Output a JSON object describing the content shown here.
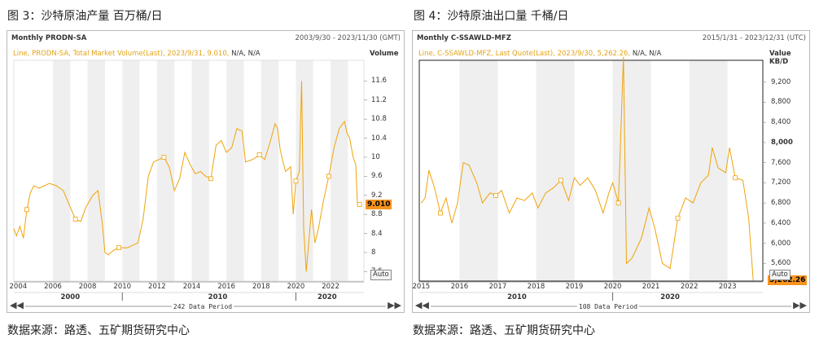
{
  "colors": {
    "line": "#f0a30a",
    "accent": "#f7941d",
    "band": "#efefef"
  },
  "charts": [
    {
      "figure_title": "图 3：沙特原油产量  百万桶/日",
      "source": "数据来源：路透、五矿期货研究中心",
      "series_code": "Monthly PRODN-SA",
      "date_range": "2003/9/30 - 2023/11/30 (GMT)",
      "legend": "Line, PRODN-SA, Total Market Volume(Last), 2023/9/31, 9.010,",
      "legend_na": "N/A, N/A",
      "unit_label": "Volume",
      "last_value_label": "9.010",
      "auto_label": "Auto",
      "period_label": "242 Data Period",
      "decade_labels": [
        "2000",
        "2010",
        "2020"
      ],
      "x_tick_labels": [
        "2004",
        "2006",
        "2008",
        "2010",
        "2012",
        "2014",
        "2016",
        "2018",
        "2020",
        "2022"
      ],
      "y_tick_labels": [
        "7.6",
        "8",
        "8.4",
        "8.8",
        "9.2",
        "9.6",
        "10",
        "10.4",
        "10.8",
        "11.2",
        "11.6"
      ]
    },
    {
      "figure_title": "图 4：沙特原油出口量  千桶/日",
      "source": "数据来源：路透、五矿期货研究中心",
      "series_code": "Monthly C-SSAWLD-MFZ",
      "date_range": "2015/1/31 - 2023/12/31 (UTC)",
      "legend": "Line, C-SSAWLD-MFZ, Last Quote(Last), 2023/9/30, 5,262.26,",
      "legend_na": "N/A, N/A",
      "unit_label": "Value",
      "unit_label2": "KB/D",
      "last_value_label": "5,262.26",
      "auto_label": "Auto",
      "period_label": "108 Data Period",
      "decade_labels": [
        "2010",
        "2020"
      ],
      "x_tick_labels": [
        "2015",
        "2016",
        "2017",
        "2018",
        "2019",
        "2020",
        "2021",
        "2022",
        "2023"
      ],
      "y_tick_labels": [
        "5,600",
        "6,000",
        "6,400",
        "6,800",
        "7,200",
        "7,600",
        "8,000",
        "8,400",
        "8,800",
        "9,200"
      ]
    }
  ],
  "chart_data": [
    {
      "type": "line",
      "title": "Monthly PRODN-SA",
      "ylabel": "Volume",
      "xlim": [
        2003.75,
        2023.92
      ],
      "ylim": [
        7.4,
        12.0
      ],
      "grid": false,
      "points": [
        [
          2003.75,
          8.5
        ],
        [
          2003.9,
          8.35
        ],
        [
          2004.1,
          8.55
        ],
        [
          2004.3,
          8.3
        ],
        [
          2004.5,
          8.9
        ],
        [
          2004.7,
          9.25
        ],
        [
          2004.9,
          9.4
        ],
        [
          2005.2,
          9.35
        ],
        [
          2005.5,
          9.4
        ],
        [
          2005.8,
          9.45
        ],
        [
          2006.2,
          9.4
        ],
        [
          2006.6,
          9.3
        ],
        [
          2007.0,
          8.95
        ],
        [
          2007.3,
          8.7
        ],
        [
          2007.6,
          8.65
        ],
        [
          2007.9,
          8.95
        ],
        [
          2008.3,
          9.2
        ],
        [
          2008.6,
          9.3
        ],
        [
          2008.85,
          8.6
        ],
        [
          2009.0,
          8.0
        ],
        [
          2009.2,
          7.95
        ],
        [
          2009.5,
          8.05
        ],
        [
          2009.8,
          8.1
        ],
        [
          2010.0,
          8.1
        ],
        [
          2010.3,
          8.1
        ],
        [
          2010.6,
          8.15
        ],
        [
          2010.9,
          8.2
        ],
        [
          2011.2,
          8.7
        ],
        [
          2011.5,
          9.6
        ],
        [
          2011.8,
          9.9
        ],
        [
          2012.1,
          9.95
        ],
        [
          2012.4,
          10.0
        ],
        [
          2012.7,
          9.8
        ],
        [
          2013.0,
          9.3
        ],
        [
          2013.3,
          9.55
        ],
        [
          2013.6,
          10.1
        ],
        [
          2013.9,
          9.85
        ],
        [
          2014.2,
          9.65
        ],
        [
          2014.5,
          9.7
        ],
        [
          2014.8,
          9.6
        ],
        [
          2015.1,
          9.55
        ],
        [
          2015.4,
          10.25
        ],
        [
          2015.7,
          10.35
        ],
        [
          2016.0,
          10.1
        ],
        [
          2016.3,
          10.2
        ],
        [
          2016.6,
          10.6
        ],
        [
          2016.9,
          10.55
        ],
        [
          2017.1,
          9.9
        ],
        [
          2017.5,
          9.95
        ],
        [
          2017.9,
          10.05
        ],
        [
          2018.2,
          9.95
        ],
        [
          2018.5,
          10.3
        ],
        [
          2018.8,
          10.7
        ],
        [
          2018.95,
          10.6
        ],
        [
          2019.1,
          10.15
        ],
        [
          2019.4,
          9.7
        ],
        [
          2019.7,
          9.8
        ],
        [
          2019.85,
          8.8
        ],
        [
          2020.0,
          9.5
        ],
        [
          2020.2,
          9.7
        ],
        [
          2020.33,
          11.6
        ],
        [
          2020.45,
          8.5
        ],
        [
          2020.6,
          7.6
        ],
        [
          2020.9,
          8.9
        ],
        [
          2021.1,
          8.2
        ],
        [
          2021.3,
          8.5
        ],
        [
          2021.6,
          9.1
        ],
        [
          2021.9,
          9.6
        ],
        [
          2022.2,
          10.2
        ],
        [
          2022.5,
          10.6
        ],
        [
          2022.8,
          10.75
        ],
        [
          2022.95,
          10.5
        ],
        [
          2023.1,
          10.4
        ],
        [
          2023.3,
          10.0
        ],
        [
          2023.45,
          9.85
        ],
        [
          2023.55,
          9.0
        ],
        [
          2023.67,
          9.01
        ]
      ],
      "last_value": 9.01,
      "last_date": "2023/9/31"
    },
    {
      "type": "line",
      "title": "Monthly C-SSAWLD-MFZ",
      "ylabel": "KB/D",
      "xlim": [
        2014.95,
        2023.92
      ],
      "ylim": [
        5250,
        9600
      ],
      "grid": false,
      "points": [
        [
          2015.0,
          6800
        ],
        [
          2015.1,
          6900
        ],
        [
          2015.2,
          7450
        ],
        [
          2015.35,
          7100
        ],
        [
          2015.5,
          6600
        ],
        [
          2015.65,
          6900
        ],
        [
          2015.8,
          6400
        ],
        [
          2015.95,
          6800
        ],
        [
          2016.1,
          7600
        ],
        [
          2016.25,
          7550
        ],
        [
          2016.45,
          7200
        ],
        [
          2016.6,
          6800
        ],
        [
          2016.8,
          7000
        ],
        [
          2016.95,
          6950
        ],
        [
          2017.1,
          7050
        ],
        [
          2017.3,
          6600
        ],
        [
          2017.5,
          6900
        ],
        [
          2017.7,
          6850
        ],
        [
          2017.9,
          7000
        ],
        [
          2018.05,
          6700
        ],
        [
          2018.25,
          7000
        ],
        [
          2018.45,
          7100
        ],
        [
          2018.65,
          7250
        ],
        [
          2018.85,
          6850
        ],
        [
          2019.0,
          7300
        ],
        [
          2019.15,
          7150
        ],
        [
          2019.35,
          7300
        ],
        [
          2019.55,
          7050
        ],
        [
          2019.75,
          6600
        ],
        [
          2019.9,
          7000
        ],
        [
          2020.0,
          7200
        ],
        [
          2020.15,
          6800
        ],
        [
          2020.28,
          9700
        ],
        [
          2020.36,
          5600
        ],
        [
          2020.5,
          5700
        ],
        [
          2020.75,
          6100
        ],
        [
          2020.95,
          6700
        ],
        [
          2021.1,
          6300
        ],
        [
          2021.3,
          5600
        ],
        [
          2021.5,
          5500
        ],
        [
          2021.7,
          6500
        ],
        [
          2021.9,
          6900
        ],
        [
          2022.1,
          6800
        ],
        [
          2022.3,
          7200
        ],
        [
          2022.5,
          7350
        ],
        [
          2022.6,
          7900
        ],
        [
          2022.75,
          7500
        ],
        [
          2022.95,
          7400
        ],
        [
          2023.05,
          7900
        ],
        [
          2023.2,
          7300
        ],
        [
          2023.4,
          7250
        ],
        [
          2023.55,
          6500
        ],
        [
          2023.67,
          5262.26
        ]
      ],
      "last_value": 5262.26,
      "last_date": "2023/9/30"
    }
  ]
}
